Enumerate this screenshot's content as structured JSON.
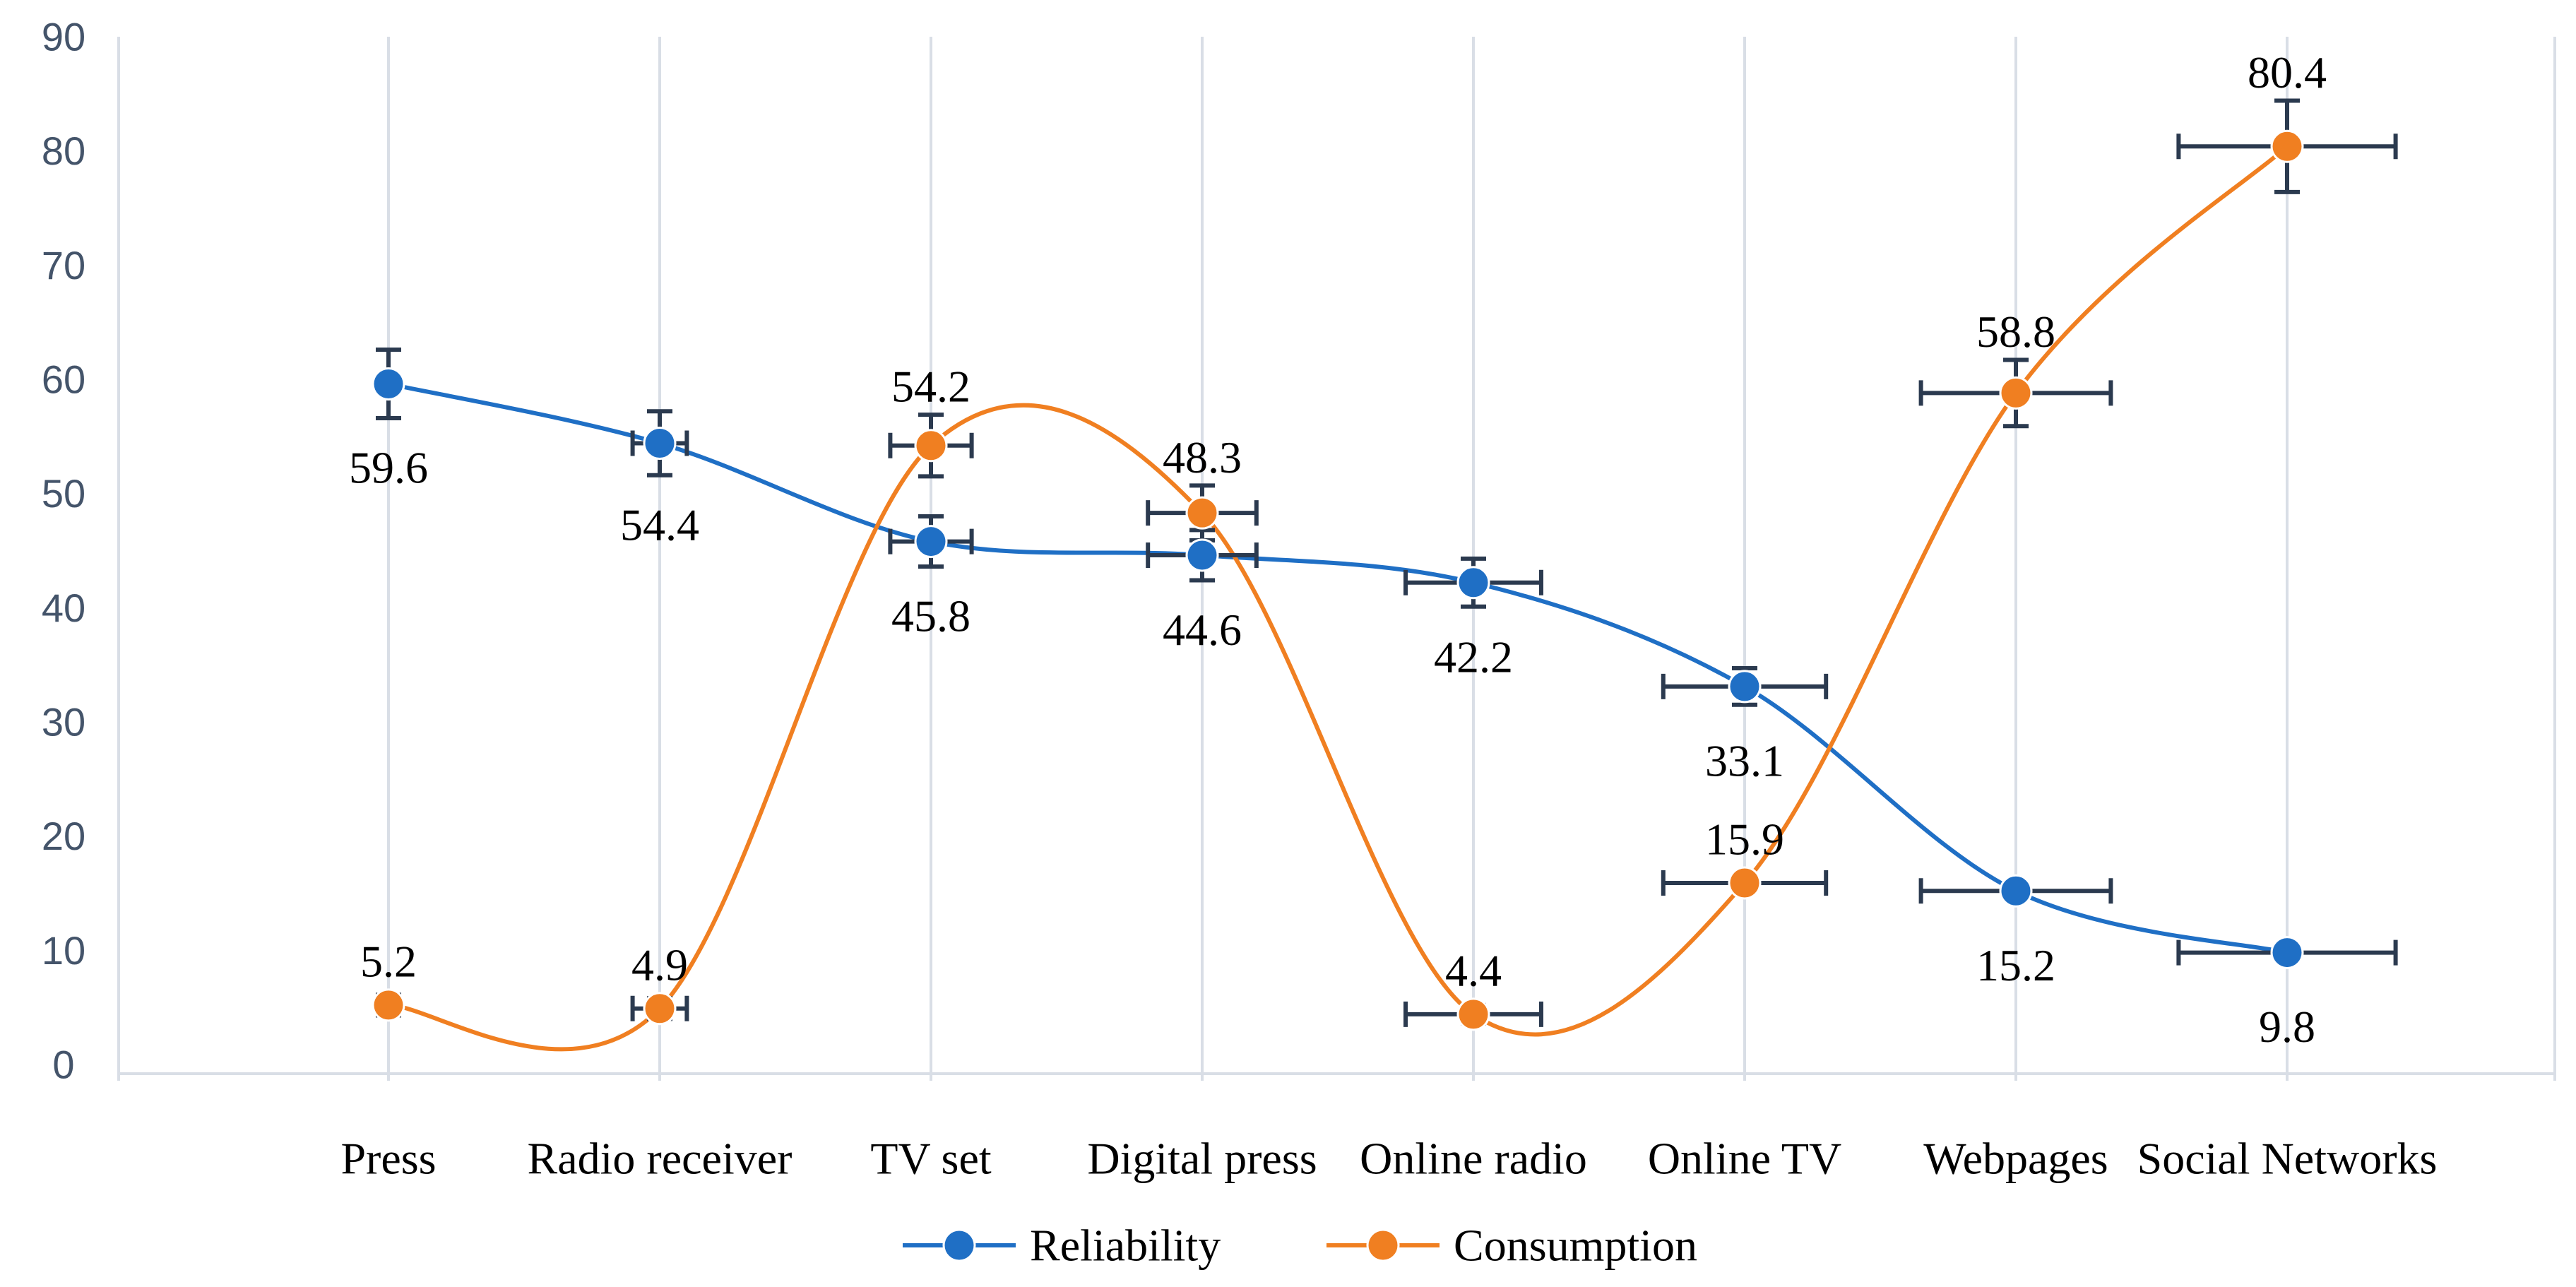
{
  "chart_data": {
    "type": "line",
    "categories": [
      "Press",
      "Radio receiver",
      "TV set",
      "Digital press",
      "Online radio",
      "Online TV",
      "Webpages",
      "Social Networks"
    ],
    "series": [
      {
        "name": "Reliability",
        "color": "#1f6fc5",
        "values": [
          59.6,
          54.4,
          45.8,
          44.6,
          42.2,
          33.1,
          15.2,
          9.8
        ],
        "labels": [
          "59.6",
          "54.4",
          "45.8",
          "44.6",
          "42.2",
          "33.1",
          "15.2",
          "9.8"
        ],
        "label_position": [
          "below",
          "below",
          "below",
          "below",
          "below",
          "below",
          "below",
          "below"
        ],
        "y_error": [
          3,
          2.8,
          2.2,
          2.2,
          2.1,
          1.6,
          0,
          0
        ],
        "x_error": [
          0,
          0.1,
          0.15,
          0.2,
          0.25,
          0.3,
          0.35,
          0.4
        ]
      },
      {
        "name": "Consumption",
        "color": "#f07f21",
        "values": [
          5.2,
          4.9,
          54.2,
          48.3,
          4.4,
          15.9,
          58.8,
          80.4
        ],
        "labels": [
          "5.2",
          "4.9",
          "54.2",
          "48.3",
          "4.4",
          "15.9",
          "58.8",
          "80.4"
        ],
        "label_position": [
          "above",
          "above",
          "above",
          "above",
          "above",
          "above",
          "above",
          "above"
        ],
        "y_error": [
          0.9,
          0.9,
          2.7,
          2.4,
          0.8,
          0,
          2.9,
          4
        ],
        "x_error": [
          0,
          0.1,
          0.15,
          0.2,
          0.25,
          0.3,
          0.35,
          0.4
        ]
      }
    ],
    "ylim": [
      0,
      90
    ],
    "yticks": [
      "0",
      "10",
      "20",
      "30",
      "40",
      "50",
      "60",
      "70",
      "80",
      "90"
    ],
    "grid": "vertical",
    "legend": "bottom-center",
    "smoothed": true,
    "error_bar_color": "#2b3a4f",
    "title": "",
    "xlabel": "",
    "ylabel": ""
  }
}
